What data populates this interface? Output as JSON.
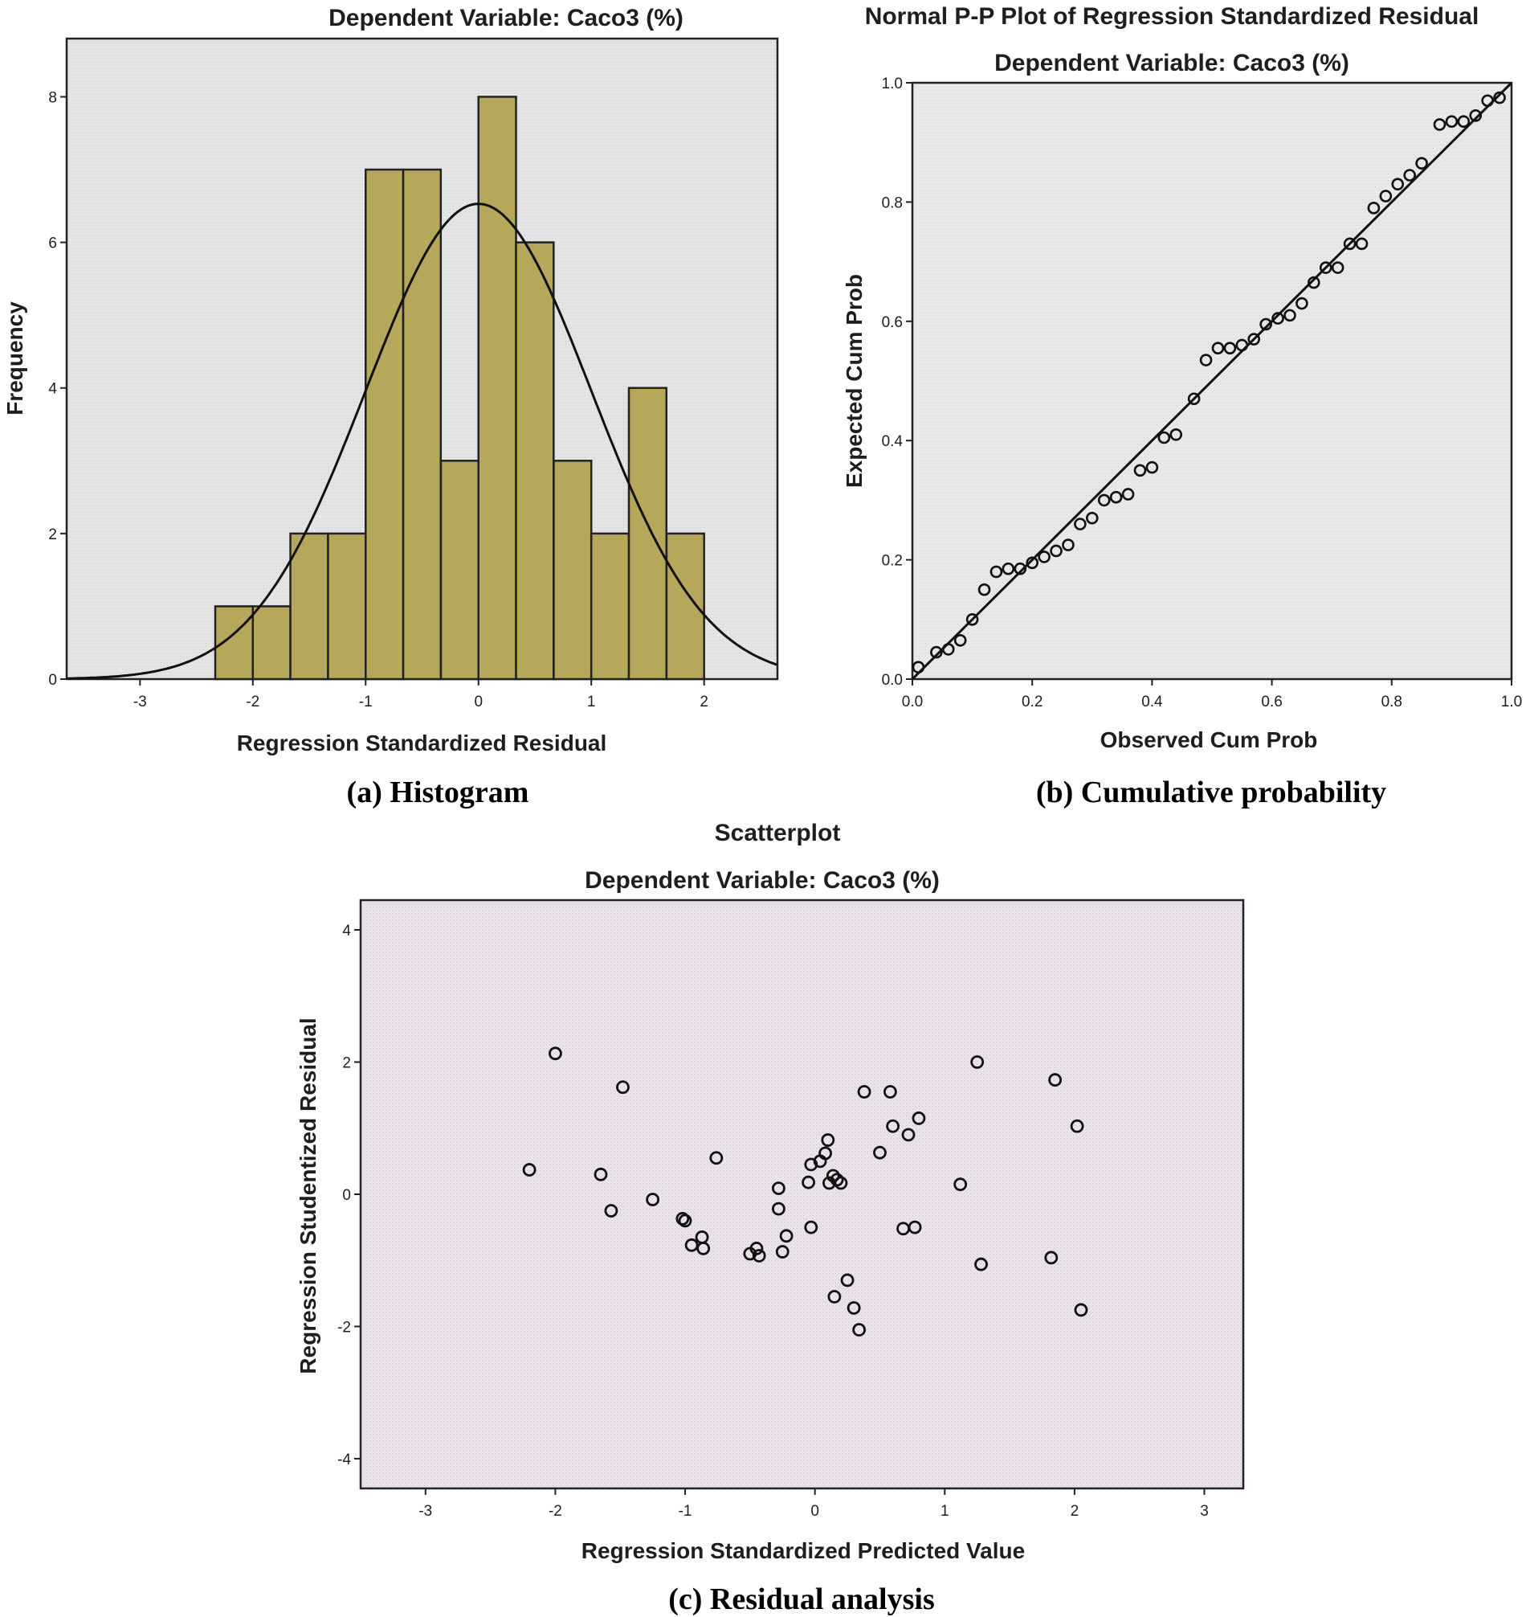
{
  "colors": {
    "hist_bar": "#b5a85a",
    "hist_bg": "#e6e6e6",
    "pp_bg": "#e9ecea",
    "scatter_bg": "#ece6ec"
  },
  "chart_data": [
    {
      "id": "histogram",
      "type": "bar",
      "title": "Dependent Variable: Caco3 (%)",
      "xlabel": "Regression Standardized Residual",
      "ylabel": "Frequency",
      "caption": "(a) Histogram",
      "xlim": [
        -3.65,
        2.65
      ],
      "ylim": [
        0,
        8.8
      ],
      "xticks": [
        -3,
        -2,
        -1,
        0,
        1,
        2
      ],
      "yticks": [
        0,
        2,
        4,
        6,
        8
      ],
      "bin_width": 0.333,
      "bins": [
        {
          "x0": -2.333,
          "count": 1
        },
        {
          "x0": -2.0,
          "count": 1
        },
        {
          "x0": -1.667,
          "count": 2
        },
        {
          "x0": -1.333,
          "count": 2
        },
        {
          "x0": -1.0,
          "count": 7
        },
        {
          "x0": -0.667,
          "count": 7
        },
        {
          "x0": -0.333,
          "count": 3
        },
        {
          "x0": 0.0,
          "count": 8
        },
        {
          "x0": 0.333,
          "count": 6
        },
        {
          "x0": 0.667,
          "count": 3
        },
        {
          "x0": 1.0,
          "count": 2
        },
        {
          "x0": 1.333,
          "count": 4
        },
        {
          "x0": 1.667,
          "count": 2
        }
      ],
      "normal_curve": {
        "mean": 0,
        "sd": 1,
        "peak": 6.53
      }
    },
    {
      "id": "pp-plot",
      "type": "scatter",
      "title": "Normal P-P Plot of Regression Standardized Residual",
      "subtitle": "Dependent Variable: Caco3 (%)",
      "xlabel": "Observed Cum Prob",
      "ylabel": "Expected Cum Prob",
      "caption": "(b) Cumulative probability",
      "xlim": [
        0,
        1
      ],
      "ylim": [
        0,
        1
      ],
      "xticks": [
        "0.0",
        "0.2",
        "0.4",
        "0.6",
        "0.8",
        "1.0"
      ],
      "yticks": [
        "0.0",
        "0.2",
        "0.4",
        "0.6",
        "0.8",
        "1.0"
      ],
      "reference_line": [
        [
          0,
          0
        ],
        [
          1,
          1
        ]
      ],
      "points": [
        [
          0.01,
          0.02
        ],
        [
          0.04,
          0.045
        ],
        [
          0.06,
          0.05
        ],
        [
          0.08,
          0.065
        ],
        [
          0.1,
          0.1
        ],
        [
          0.12,
          0.15
        ],
        [
          0.14,
          0.18
        ],
        [
          0.16,
          0.185
        ],
        [
          0.18,
          0.185
        ],
        [
          0.2,
          0.195
        ],
        [
          0.22,
          0.205
        ],
        [
          0.24,
          0.215
        ],
        [
          0.26,
          0.225
        ],
        [
          0.28,
          0.26
        ],
        [
          0.3,
          0.27
        ],
        [
          0.32,
          0.3
        ],
        [
          0.34,
          0.305
        ],
        [
          0.36,
          0.31
        ],
        [
          0.38,
          0.35
        ],
        [
          0.4,
          0.355
        ],
        [
          0.42,
          0.405
        ],
        [
          0.44,
          0.41
        ],
        [
          0.47,
          0.47
        ],
        [
          0.49,
          0.535
        ],
        [
          0.51,
          0.555
        ],
        [
          0.53,
          0.555
        ],
        [
          0.55,
          0.56
        ],
        [
          0.57,
          0.57
        ],
        [
          0.59,
          0.595
        ],
        [
          0.61,
          0.605
        ],
        [
          0.63,
          0.61
        ],
        [
          0.65,
          0.63
        ],
        [
          0.67,
          0.665
        ],
        [
          0.69,
          0.69
        ],
        [
          0.71,
          0.69
        ],
        [
          0.73,
          0.73
        ],
        [
          0.75,
          0.73
        ],
        [
          0.77,
          0.79
        ],
        [
          0.79,
          0.81
        ],
        [
          0.81,
          0.83
        ],
        [
          0.83,
          0.845
        ],
        [
          0.85,
          0.865
        ],
        [
          0.88,
          0.93
        ],
        [
          0.9,
          0.935
        ],
        [
          0.92,
          0.935
        ],
        [
          0.94,
          0.945
        ],
        [
          0.96,
          0.97
        ],
        [
          0.98,
          0.975
        ]
      ]
    },
    {
      "id": "residual-scatter",
      "type": "scatter",
      "title": "Scatterplot",
      "subtitle": "Dependent Variable: Caco3 (%)",
      "xlabel": "Regression Standardized Predicted Value",
      "ylabel": "Regression Studentized Residual",
      "caption": "(c) Residual analysis",
      "xlim": [
        -3.5,
        3.3
      ],
      "ylim": [
        -4.45,
        4.45
      ],
      "xticks": [
        -3,
        -2,
        -1,
        0,
        1,
        2,
        3
      ],
      "yticks": [
        -4,
        -2,
        0,
        2,
        4
      ],
      "points": [
        [
          -2.2,
          0.37
        ],
        [
          -2.0,
          2.13
        ],
        [
          -1.65,
          0.3
        ],
        [
          -1.57,
          -0.25
        ],
        [
          -1.48,
          1.62
        ],
        [
          -1.25,
          -0.08
        ],
        [
          -1.02,
          -0.37
        ],
        [
          -1.0,
          -0.4
        ],
        [
          -0.95,
          -0.77
        ],
        [
          -0.87,
          -0.65
        ],
        [
          -0.86,
          -0.82
        ],
        [
          -0.76,
          0.55
        ],
        [
          -0.5,
          -0.9
        ],
        [
          -0.45,
          -0.82
        ],
        [
          -0.43,
          -0.93
        ],
        [
          -0.28,
          0.09
        ],
        [
          -0.28,
          -0.22
        ],
        [
          -0.25,
          -0.87
        ],
        [
          -0.22,
          -0.63
        ],
        [
          -0.05,
          0.18
        ],
        [
          -0.03,
          0.45
        ],
        [
          -0.03,
          -0.5
        ],
        [
          0.04,
          0.5
        ],
        [
          0.08,
          0.62
        ],
        [
          0.1,
          0.82
        ],
        [
          0.11,
          0.17
        ],
        [
          0.14,
          0.28
        ],
        [
          0.15,
          -1.55
        ],
        [
          0.17,
          0.22
        ],
        [
          0.2,
          0.17
        ],
        [
          0.25,
          -1.3
        ],
        [
          0.3,
          -1.72
        ],
        [
          0.34,
          -2.05
        ],
        [
          0.38,
          1.55
        ],
        [
          0.5,
          0.63
        ],
        [
          0.58,
          1.55
        ],
        [
          0.6,
          1.03
        ],
        [
          0.68,
          -0.52
        ],
        [
          0.72,
          0.9
        ],
        [
          0.77,
          -0.5
        ],
        [
          0.8,
          1.15
        ],
        [
          1.12,
          0.15
        ],
        [
          1.25,
          2.0
        ],
        [
          1.28,
          -1.06
        ],
        [
          1.82,
          -0.96
        ],
        [
          1.85,
          1.73
        ],
        [
          2.02,
          1.03
        ],
        [
          2.05,
          -1.75
        ]
      ]
    }
  ]
}
